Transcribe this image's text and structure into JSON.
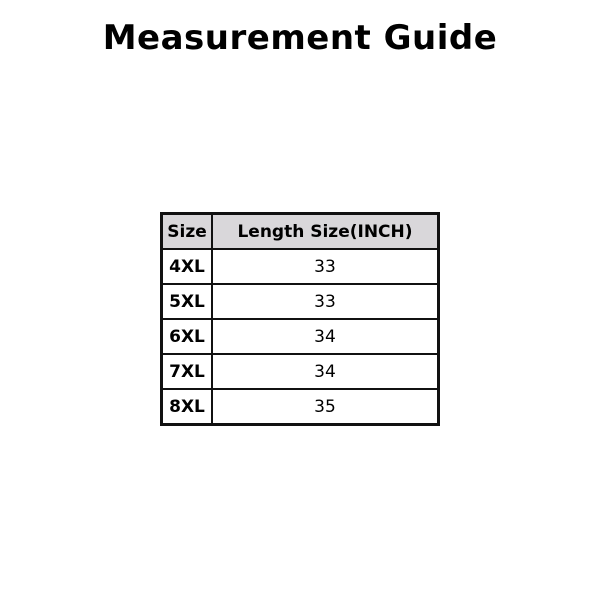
{
  "title": "Measurement Guide",
  "table": {
    "headers": [
      "Size",
      "Length Size(INCH)"
    ],
    "rows": [
      {
        "size": "4XL",
        "length": "33"
      },
      {
        "size": "5XL",
        "length": "33"
      },
      {
        "size": "6XL",
        "length": "34"
      },
      {
        "size": "7XL",
        "length": "34"
      },
      {
        "size": "8XL",
        "length": "35"
      }
    ],
    "header_bg": "#d9d7da"
  }
}
